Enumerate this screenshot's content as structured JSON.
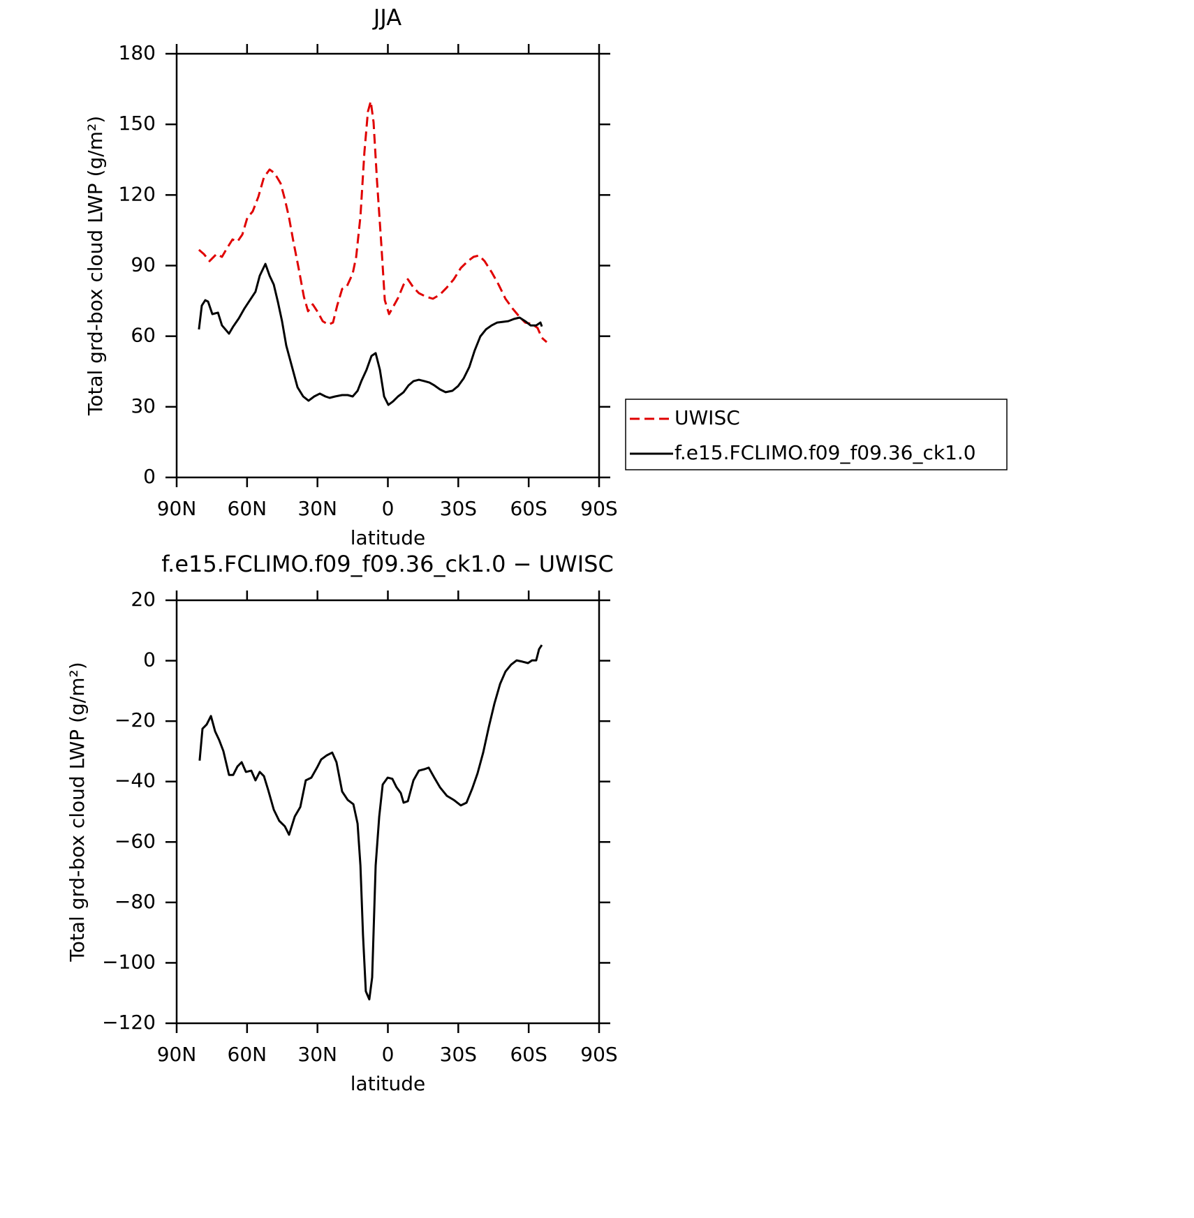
{
  "chart_data": [
    {
      "type": "line",
      "title": "JJA",
      "xlabel": "latitude",
      "ylabel": "Total grd-box cloud LWP (g/m²)",
      "xlim": [
        90,
        -90
      ],
      "xticks": [
        {
          "value": 90,
          "label": "90N"
        },
        {
          "value": 60,
          "label": "60N"
        },
        {
          "value": 30,
          "label": "30N"
        },
        0,
        {
          "value": -30,
          "label": "30S"
        },
        {
          "value": -60,
          "label": "60S"
        },
        {
          "value": -90,
          "label": "90S"
        }
      ],
      "ylim": [
        0,
        180
      ],
      "yticks": [
        0,
        30,
        60,
        90,
        120,
        150,
        180
      ],
      "legend": "right",
      "series": [
        {
          "name": "UWISC",
          "color": "#e00000",
          "dash": true,
          "x": [
            80.5,
            78.4,
            76,
            73,
            70.7,
            68.6,
            66.2,
            64.1,
            62,
            59.9,
            57.6,
            55.2,
            52.8,
            50.4,
            48.3,
            45.7,
            43.9,
            42.1,
            40.3,
            38,
            35.8,
            34,
            32,
            29.9,
            27.8,
            25.4,
            23.4,
            21.6,
            19.5,
            17.4,
            15,
            13.5,
            11.7,
            10,
            8.5,
            7.3,
            6.1,
            4.6,
            2.8,
            1.3,
            -0.5,
            -2.2,
            -4.3,
            -6.7,
            -8.5,
            -10.9,
            -13.2,
            -16.2,
            -19.2,
            -22.2,
            -25.1,
            -28.1,
            -31.1,
            -34.1,
            -36.5,
            -38.8,
            -41.2,
            -44.2,
            -47.2,
            -50.1,
            -53.1,
            -56.1,
            -58.5,
            -61.4,
            -63.8,
            -65.6,
            -67.7
          ],
          "values": [
            96.7,
            94.9,
            91.9,
            94.9,
            93.7,
            97.3,
            101.1,
            100.2,
            103.2,
            110.3,
            113,
            119.2,
            127.5,
            130.8,
            129.3,
            124.9,
            118.3,
            110.3,
            100.5,
            88.7,
            76.8,
            70.6,
            73.5,
            70.3,
            66.4,
            64.9,
            65.8,
            73,
            80.1,
            81.3,
            86.6,
            93.7,
            110.9,
            138.2,
            155.4,
            159.8,
            150.9,
            125.7,
            99,
            75.3,
            69.4,
            72.4,
            76.2,
            81.9,
            84.2,
            80.7,
            78.3,
            76.8,
            75.9,
            77.7,
            80.7,
            84.2,
            89,
            91.9,
            93.7,
            94.3,
            91.9,
            87.2,
            81.9,
            75.9,
            71.8,
            68.2,
            65.8,
            65.2,
            63.5,
            59.3,
            57.5
          ]
        },
        {
          "name": "f.e15.FCLIMO.f09_f09.36_ck1.0",
          "color": "#000000",
          "dash": false,
          "x": [
            80.5,
            79.3,
            77.8,
            76.6,
            74.8,
            72.4,
            70.7,
            67.7,
            65.9,
            63.5,
            61.1,
            58.8,
            56.4,
            54.6,
            52.2,
            50.4,
            48.6,
            46.9,
            45.1,
            43.3,
            40.9,
            38.5,
            36.1,
            33.8,
            31.4,
            29,
            26.6,
            24.8,
            22.5,
            19.5,
            17.1,
            15,
            12.9,
            11.2,
            9.1,
            7,
            5.2,
            3.4,
            1.6,
            -0.2,
            -2.2,
            -4.3,
            -6.7,
            -8.8,
            -10.9,
            -13.2,
            -15.6,
            -17.7,
            -19.8,
            -22.2,
            -24.6,
            -27.5,
            -29.9,
            -32.3,
            -34.7,
            -37,
            -39.4,
            -41.8,
            -44.2,
            -46.6,
            -49,
            -51.3,
            -53.7,
            -56.1,
            -58.5,
            -60.8,
            -63.2,
            -65,
            -65.6
          ],
          "values": [
            62.9,
            73,
            75.3,
            74.7,
            69.4,
            70,
            64.6,
            61.1,
            64.1,
            67.6,
            71.8,
            75.3,
            78.9,
            85.7,
            90.7,
            85.7,
            81.9,
            74.7,
            66.4,
            56,
            47.2,
            38.3,
            34.4,
            32.6,
            34.4,
            35.6,
            34.4,
            33.8,
            34.4,
            35,
            35,
            34.4,
            36.8,
            41.2,
            45.7,
            51.6,
            52.8,
            45.7,
            34.4,
            30.8,
            32.3,
            34.4,
            36.2,
            39.1,
            40.9,
            41.5,
            40.9,
            40.3,
            39.1,
            37.4,
            36.2,
            36.8,
            38.8,
            42.1,
            46.9,
            54,
            59.9,
            62.9,
            64.6,
            65.8,
            66.1,
            66.4,
            67.3,
            67.9,
            66.4,
            64.6,
            64.6,
            65.8,
            64.1
          ]
        }
      ]
    },
    {
      "type": "line",
      "title": "f.e15.FCLIMO.f09_f09.36_ck1.0 − UWISC",
      "xlabel": "latitude",
      "ylabel": "Total grd-box cloud LWP (g/m²)",
      "xlim": [
        90,
        -90
      ],
      "xticks": [
        {
          "value": 90,
          "label": "90N"
        },
        {
          "value": 60,
          "label": "60N"
        },
        {
          "value": 30,
          "label": "30N"
        },
        0,
        {
          "value": -30,
          "label": "30S"
        },
        {
          "value": -60,
          "label": "60S"
        },
        {
          "value": -90,
          "label": "90S"
        }
      ],
      "ylim": [
        -120,
        20
      ],
      "yticks": [
        {
          "value": -120,
          "label": "−120"
        },
        {
          "value": -100,
          "label": "−100"
        },
        {
          "value": -80,
          "label": "−80"
        },
        {
          "value": -60,
          "label": "−60"
        },
        {
          "value": -40,
          "label": "−40"
        },
        {
          "value": -20,
          "label": "−20"
        },
        0,
        20
      ],
      "series": [
        {
          "color": "#000000",
          "dash": false,
          "x": [
            80.2,
            79,
            77.2,
            75.4,
            73.6,
            71.9,
            70.1,
            67.7,
            65.9,
            64.1,
            62.3,
            60.5,
            58.2,
            56.4,
            54.6,
            52.8,
            51,
            48.6,
            46.3,
            43.9,
            42.1,
            39.7,
            37.3,
            35,
            32.6,
            30.2,
            28.4,
            26,
            23.7,
            21.9,
            19.5,
            17.1,
            14.7,
            12.9,
            11.7,
            10.6,
            9.4,
            7.9,
            6.7,
            5.2,
            3.7,
            2.2,
            0.1,
            -1.9,
            -3.7,
            -5.5,
            -6.7,
            -8.5,
            -10.9,
            -13.2,
            -15.6,
            -17.4,
            -19.8,
            -22.2,
            -25.1,
            -28.1,
            -31.1,
            -33.5,
            -35.9,
            -38.2,
            -40.6,
            -43,
            -45.4,
            -47.8,
            -50.1,
            -52.5,
            -54.9,
            -57.3,
            -59.7,
            -61.4,
            -63.2,
            -64.4,
            -65.6
          ],
          "values": [
            -33.1,
            -22.5,
            -21.1,
            -18.3,
            -23.4,
            -26.2,
            -29.9,
            -37.8,
            -37.8,
            -35,
            -33.6,
            -36.8,
            -36.4,
            -39.6,
            -36.8,
            -38.2,
            -42.8,
            -49.3,
            -53,
            -54.8,
            -57.6,
            -51.6,
            -48.4,
            -39.6,
            -38.7,
            -35.4,
            -32.7,
            -31.3,
            -30.4,
            -33.6,
            -43.3,
            -46.1,
            -47.5,
            -53.9,
            -67.8,
            -90.9,
            -109.4,
            -112.1,
            -104.8,
            -67.8,
            -51.6,
            -41,
            -38.7,
            -39.1,
            -41.9,
            -43.8,
            -47,
            -46.5,
            -39.6,
            -36.4,
            -35.9,
            -35.4,
            -38.7,
            -41.9,
            -44.7,
            -46.1,
            -47.9,
            -47,
            -42.4,
            -37.3,
            -30.4,
            -22,
            -14.2,
            -7.7,
            -3.6,
            -1.3,
            0.1,
            -0.3,
            -0.8,
            0.1,
            0.1,
            3.8,
            5.2
          ]
        }
      ]
    }
  ]
}
